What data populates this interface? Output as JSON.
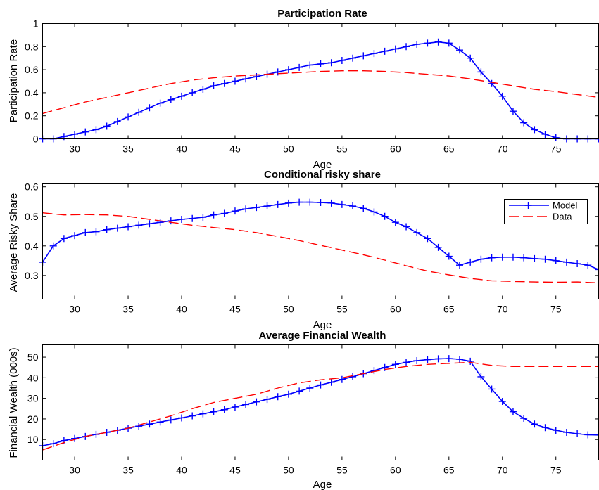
{
  "colors": {
    "model": "#0000ff",
    "data": "#ff0000",
    "axis": "#000000"
  },
  "chart_data": [
    {
      "type": "line",
      "title": "Participation Rate",
      "xlabel": "Age",
      "ylabel": "Participation Rate",
      "xlim": [
        27,
        79
      ],
      "ylim": [
        0,
        1
      ],
      "xticks": [
        30,
        35,
        40,
        45,
        50,
        55,
        60,
        65,
        70,
        75
      ],
      "yticks": [
        0,
        0.2,
        0.4,
        0.6,
        0.8,
        1
      ],
      "ytick_labels": [
        "0",
        "0.2",
        "0.4",
        "0.6",
        "0.8",
        "1"
      ],
      "grid": false,
      "legend": null,
      "series": [
        {
          "key": "model",
          "style": "solid-plus",
          "x": [
            27,
            28,
            29,
            30,
            31,
            32,
            33,
            34,
            35,
            36,
            37,
            38,
            39,
            40,
            41,
            42,
            43,
            44,
            45,
            46,
            47,
            48,
            49,
            50,
            51,
            52,
            53,
            54,
            55,
            56,
            57,
            58,
            59,
            60,
            61,
            62,
            63,
            64,
            65,
            66,
            67,
            68,
            69,
            70,
            71,
            72,
            73,
            74,
            75,
            76,
            77,
            78,
            79
          ],
          "values": [
            0,
            0,
            0.02,
            0.04,
            0.06,
            0.08,
            0.11,
            0.15,
            0.19,
            0.23,
            0.27,
            0.31,
            0.34,
            0.37,
            0.4,
            0.43,
            0.46,
            0.48,
            0.5,
            0.52,
            0.54,
            0.56,
            0.58,
            0.6,
            0.62,
            0.64,
            0.65,
            0.66,
            0.68,
            0.7,
            0.72,
            0.74,
            0.76,
            0.78,
            0.8,
            0.82,
            0.83,
            0.84,
            0.83,
            0.77,
            0.7,
            0.58,
            0.48,
            0.37,
            0.24,
            0.14,
            0.08,
            0.04,
            0.01,
            0,
            0,
            0,
            0
          ]
        },
        {
          "key": "data",
          "style": "dashed",
          "x": [
            27,
            29,
            31,
            33,
            35,
            37,
            39,
            41,
            43,
            45,
            47,
            49,
            51,
            53,
            55,
            57,
            59,
            61,
            63,
            65,
            67,
            69,
            71,
            73,
            75,
            77,
            79
          ],
          "values": [
            0.22,
            0.27,
            0.32,
            0.36,
            0.4,
            0.44,
            0.48,
            0.51,
            0.53,
            0.545,
            0.555,
            0.565,
            0.575,
            0.585,
            0.59,
            0.59,
            0.585,
            0.575,
            0.56,
            0.545,
            0.52,
            0.49,
            0.46,
            0.43,
            0.41,
            0.385,
            0.36
          ]
        }
      ]
    },
    {
      "type": "line",
      "title": "Conditional risky share",
      "xlabel": "Age",
      "ylabel": "Average Risky Share",
      "xlim": [
        27,
        79
      ],
      "ylim": [
        0.22,
        0.61
      ],
      "xticks": [
        30,
        35,
        40,
        45,
        50,
        55,
        60,
        65,
        70,
        75
      ],
      "yticks": [
        0.3,
        0.4,
        0.5,
        0.6
      ],
      "ytick_labels": [
        "0.3",
        "0.4",
        "0.5",
        "0.6"
      ],
      "grid": false,
      "legend": "top-right",
      "series": [
        {
          "key": "model",
          "name": "Model",
          "style": "solid-plus",
          "x": [
            27,
            28,
            29,
            30,
            31,
            32,
            33,
            34,
            35,
            36,
            37,
            38,
            39,
            40,
            41,
            42,
            43,
            44,
            45,
            46,
            47,
            48,
            49,
            50,
            51,
            52,
            53,
            54,
            55,
            56,
            57,
            58,
            59,
            60,
            61,
            62,
            63,
            64,
            65,
            66,
            67,
            68,
            69,
            70,
            71,
            72,
            73,
            74,
            75,
            76,
            77,
            78,
            79
          ],
          "values": [
            0.345,
            0.4,
            0.425,
            0.435,
            0.445,
            0.448,
            0.455,
            0.46,
            0.465,
            0.47,
            0.475,
            0.48,
            0.485,
            0.49,
            0.493,
            0.497,
            0.505,
            0.51,
            0.518,
            0.525,
            0.53,
            0.535,
            0.54,
            0.545,
            0.548,
            0.548,
            0.547,
            0.545,
            0.54,
            0.535,
            0.527,
            0.515,
            0.5,
            0.48,
            0.465,
            0.445,
            0.425,
            0.395,
            0.365,
            0.335,
            0.345,
            0.355,
            0.36,
            0.362,
            0.362,
            0.36,
            0.357,
            0.355,
            0.35,
            0.345,
            0.34,
            0.335,
            0.32
          ]
        },
        {
          "key": "data",
          "name": "Data",
          "style": "dashed",
          "x": [
            27,
            29,
            31,
            33,
            35,
            37,
            39,
            41,
            43,
            45,
            47,
            49,
            51,
            53,
            55,
            57,
            59,
            61,
            63,
            65,
            67,
            69,
            71,
            73,
            75,
            77,
            79
          ],
          "values": [
            0.512,
            0.505,
            0.506,
            0.505,
            0.5,
            0.49,
            0.48,
            0.47,
            0.462,
            0.455,
            0.445,
            0.432,
            0.418,
            0.402,
            0.386,
            0.37,
            0.352,
            0.333,
            0.315,
            0.302,
            0.29,
            0.282,
            0.28,
            0.278,
            0.277,
            0.278,
            0.275
          ]
        }
      ]
    },
    {
      "type": "line",
      "title": "Average Financial Wealth",
      "xlabel": "Age",
      "ylabel": "Financial Wealth (000s)",
      "xlim": [
        27,
        79
      ],
      "ylim": [
        0,
        56
      ],
      "xticks": [
        30,
        35,
        40,
        45,
        50,
        55,
        60,
        65,
        70,
        75
      ],
      "yticks": [
        10,
        20,
        30,
        40,
        50
      ],
      "ytick_labels": [
        "10",
        "20",
        "30",
        "40",
        "50"
      ],
      "grid": false,
      "legend": null,
      "series": [
        {
          "key": "model",
          "style": "solid-plus",
          "x": [
            27,
            28,
            29,
            30,
            31,
            32,
            33,
            34,
            35,
            36,
            37,
            38,
            39,
            40,
            41,
            42,
            43,
            44,
            45,
            46,
            47,
            48,
            49,
            50,
            51,
            52,
            53,
            54,
            55,
            56,
            57,
            58,
            59,
            60,
            61,
            62,
            63,
            64,
            65,
            66,
            67,
            68,
            69,
            70,
            71,
            72,
            73,
            74,
            75,
            76,
            77,
            78,
            79
          ],
          "values": [
            7,
            8,
            9.5,
            10.5,
            11.5,
            12.5,
            13.5,
            14.5,
            15.5,
            16.5,
            17.5,
            18.5,
            19.5,
            20.5,
            21.5,
            22.5,
            23.5,
            24.5,
            25.8,
            27,
            28.3,
            29.5,
            30.8,
            32,
            33.5,
            35,
            36.5,
            37.8,
            39.2,
            40.5,
            42,
            43.5,
            45,
            46.5,
            47.5,
            48.3,
            48.8,
            49.2,
            49.3,
            49,
            48,
            40.5,
            34.5,
            28.5,
            23.5,
            20.3,
            17.5,
            15.8,
            14.5,
            13.5,
            12.8,
            12.3,
            12.2
          ]
        },
        {
          "key": "data",
          "style": "dashed",
          "x": [
            27,
            29,
            31,
            33,
            35,
            37,
            39,
            41,
            43,
            45,
            47,
            49,
            51,
            53,
            55,
            57,
            59,
            61,
            63,
            65,
            67,
            69,
            71,
            73,
            75,
            77,
            79
          ],
          "values": [
            5,
            8.5,
            11.5,
            13.5,
            15.5,
            18.5,
            21.5,
            25,
            28,
            30,
            32,
            35,
            37.5,
            39,
            40,
            42,
            44,
            45.5,
            46.5,
            47,
            47.5,
            46,
            45.5,
            45.5,
            45.5,
            45.5,
            45.5
          ]
        }
      ]
    }
  ]
}
